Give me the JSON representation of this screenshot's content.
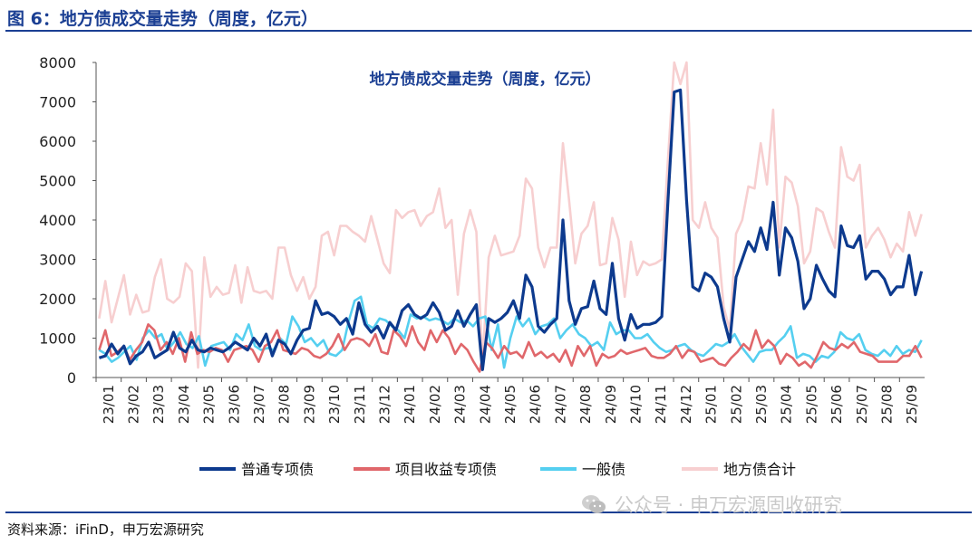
{
  "figure_title": "图 6：地方债成交量走势（周度，亿元）",
  "source": "资料来源：iFinD，申万宏源研究",
  "watermark": "公众号 · 申万宏源固收研究",
  "watermark_icon": "wechat-icon",
  "chart_data": {
    "type": "line",
    "title": "地方债成交量走势（周度，亿元）",
    "xlabel": "",
    "ylabel": "",
    "ylim": [
      0,
      8000
    ],
    "yticks": [
      0,
      1000,
      2000,
      3000,
      4000,
      5000,
      6000,
      7000,
      8000
    ],
    "x_tick_labels": [
      "23/01",
      "23/02",
      "23/03",
      "23/04",
      "23/05",
      "23/06",
      "23/07",
      "23/08",
      "23/09",
      "23/10",
      "23/11",
      "23/12",
      "24/01",
      "24/02",
      "24/03",
      "24/04",
      "24/05",
      "24/06",
      "24/07",
      "24/08",
      "24/09",
      "24/10",
      "24/11",
      "24/12",
      "25/01",
      "25/02",
      "25/03",
      "25/04",
      "25/05",
      "25/06",
      "25/07",
      "25/08",
      "25/09"
    ],
    "legend_position": "bottom",
    "series": [
      {
        "name": "普通专项债",
        "color": "#0d3a8e",
        "values": [
          500,
          550,
          850,
          600,
          800,
          350,
          550,
          650,
          900,
          500,
          600,
          700,
          1150,
          750,
          650,
          950,
          700,
          650,
          750,
          700,
          650,
          750,
          900,
          800,
          700,
          1000,
          800,
          1100,
          550,
          950,
          850,
          600,
          950,
          1200,
          1250,
          1950,
          1600,
          1650,
          1550,
          1350,
          1500,
          1100,
          1900,
          1350,
          1150,
          1300,
          1000,
          1400,
          1200,
          1700,
          1850,
          1600,
          1500,
          1600,
          1900,
          1650,
          1200,
          1300,
          1700,
          1300,
          1600,
          1850,
          200,
          1500,
          1400,
          1500,
          1650,
          1950,
          1500,
          2600,
          2300,
          1300,
          1150,
          1350,
          1500,
          4000,
          1950,
          1350,
          1750,
          1800,
          2450,
          1750,
          1600,
          2900,
          1500,
          950,
          1600,
          1250,
          1350,
          1350,
          1400,
          1550,
          4500,
          7250,
          7300,
          4500,
          2300,
          2200,
          2650,
          2550,
          2300,
          1500,
          900,
          2550,
          3000,
          3450,
          3200,
          3800,
          3250,
          4450,
          2600,
          3800,
          3550,
          2950,
          1750,
          2000,
          2850,
          2500,
          2200,
          2050,
          3850,
          3350,
          3300,
          3600,
          2500,
          2700,
          2700,
          2500,
          2100,
          2300,
          2300,
          3100,
          2100,
          2700
        ]
      },
      {
        "name": "项目收益专项债",
        "color": "#e0676b",
        "values": [
          700,
          1200,
          550,
          650,
          800,
          450,
          700,
          900,
          1350,
          1200,
          700,
          900,
          600,
          1000,
          400,
          1150,
          600,
          700,
          650,
          750,
          700,
          400,
          700,
          750,
          800,
          700,
          400,
          800,
          900,
          1200,
          700,
          650,
          600,
          750,
          700,
          550,
          500,
          600,
          800,
          1100,
          700,
          950,
          1000,
          950,
          800,
          1100,
          650,
          600,
          1200,
          1050,
          800,
          1300,
          900,
          700,
          1200,
          900,
          1200,
          1000,
          600,
          850,
          700,
          400,
          150,
          900,
          750,
          500,
          800,
          600,
          650,
          500,
          900,
          550,
          650,
          500,
          600,
          400,
          700,
          300,
          800,
          550,
          800,
          300,
          600,
          500,
          550,
          700,
          600,
          650,
          700,
          750,
          550,
          500,
          500,
          600,
          800,
          500,
          700,
          650,
          400,
          450,
          500,
          350,
          300,
          500,
          650,
          850,
          700,
          1200,
          750,
          950,
          800,
          350,
          600,
          500,
          300,
          400,
          250,
          550,
          900,
          750,
          700,
          850,
          750,
          900,
          650,
          600,
          550,
          400,
          400,
          400,
          400,
          550,
          550,
          800,
          500
        ]
      },
      {
        "name": "一般债",
        "color": "#55cff0",
        "values": [
          700,
          600,
          400,
          500,
          650,
          800,
          450,
          1000,
          1200,
          1000,
          1100,
          700,
          900,
          1150,
          850,
          750,
          1050,
          300,
          800,
          850,
          900,
          700,
          1100,
          950,
          1350,
          800,
          700,
          750,
          700,
          1000,
          850,
          1550,
          1300,
          900,
          1000,
          800,
          950,
          600,
          550,
          700,
          1400,
          1950,
          2050,
          1350,
          1250,
          1500,
          1450,
          1300,
          1200,
          1000,
          1600,
          1500,
          1550,
          1450,
          1500,
          1450,
          1350,
          1500,
          1400,
          1450,
          1300,
          1500,
          1550,
          700,
          1350,
          250,
          1000,
          1550,
          1300,
          1500,
          1100,
          1300,
          1350,
          1500,
          1000,
          1200,
          1350,
          1100,
          1000,
          800,
          900,
          700,
          1400,
          1100,
          1200,
          1200,
          1000,
          1000,
          1100,
          900,
          750,
          650,
          700,
          800,
          850,
          700,
          600,
          550,
          700,
          850,
          800,
          900,
          1100,
          800,
          600,
          400,
          650,
          700,
          700,
          900,
          1050,
          1300,
          500,
          600,
          550,
          400,
          550,
          500,
          650,
          1150,
          1000,
          950,
          1100,
          700,
          600,
          550,
          700,
          550,
          800,
          600,
          700,
          650,
          950
        ]
      },
      {
        "name": "地方债合计",
        "color": "#f7cfd0",
        "values": [
          1500,
          2450,
          1400,
          2000,
          2600,
          1600,
          2100,
          1650,
          1700,
          2550,
          3000,
          2000,
          1900,
          2050,
          2900,
          2700,
          250,
          3050,
          2050,
          2300,
          2100,
          2150,
          2850,
          1900,
          2800,
          2200,
          2150,
          2200,
          2000,
          3300,
          3300,
          2600,
          2200,
          2550,
          2000,
          2300,
          3600,
          3700,
          3100,
          3850,
          3850,
          3700,
          3600,
          3450,
          4100,
          3500,
          2900,
          2650,
          4250,
          4050,
          4200,
          4250,
          3850,
          4100,
          4200,
          4800,
          3800,
          4000,
          2100,
          3650,
          4250,
          3700,
          400,
          3050,
          3600,
          3100,
          3150,
          3200,
          3600,
          5050,
          4800,
          3300,
          2800,
          3300,
          3300,
          5950,
          4500,
          2900,
          3650,
          3850,
          4450,
          2850,
          2900,
          4050,
          3500,
          2050,
          3450,
          2600,
          2950,
          2850,
          2900,
          3000,
          5550,
          8000,
          7450,
          8000,
          4000,
          3800,
          4450,
          3800,
          3550,
          1800,
          1200,
          3650,
          4000,
          4850,
          4800,
          5950,
          4900,
          6800,
          3300,
          5100,
          4950,
          4350,
          2900,
          3200,
          4300,
          4200,
          3700,
          3300,
          5850,
          5100,
          5000,
          5400,
          3300,
          3600,
          3800,
          3500,
          3050,
          3400,
          3200,
          4200,
          3600,
          4150
        ]
      }
    ]
  }
}
